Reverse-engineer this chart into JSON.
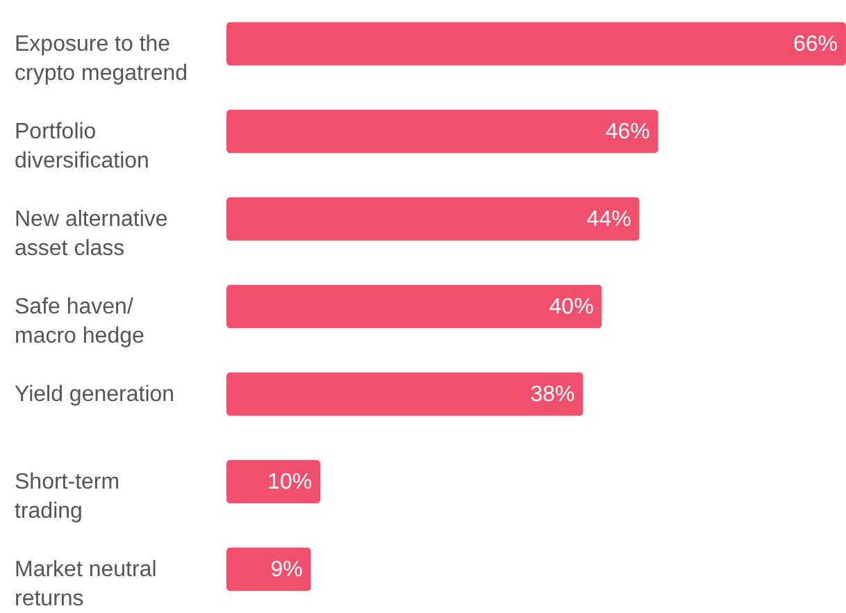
{
  "chart_data": {
    "type": "bar",
    "orientation": "horizontal",
    "categories": [
      "Exposure to the\ncrypto megatrend",
      "Portfolio\ndiversification",
      "New alternative\nasset class",
      "Safe haven/\nmacro hedge",
      "Yield generation",
      "Short-term\ntrading",
      "Market neutral\nreturns"
    ],
    "values": [
      66,
      46,
      44,
      40,
      38,
      10,
      9
    ],
    "value_labels": [
      "66%",
      "46%",
      "44%",
      "40%",
      "38%",
      "10%",
      "9%"
    ],
    "color": "#f0506e"
  }
}
